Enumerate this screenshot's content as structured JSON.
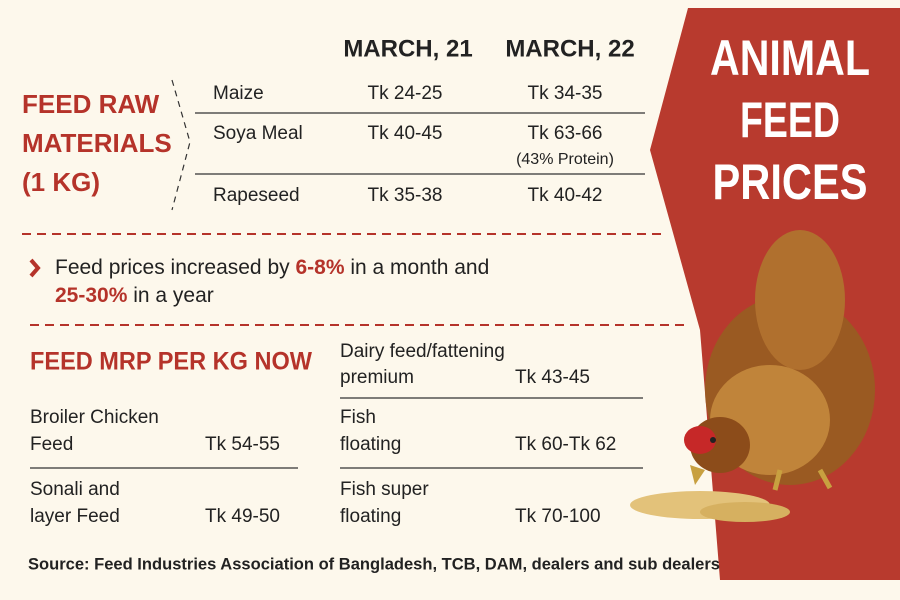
{
  "title": [
    "ANIMAL",
    "FEED",
    "PRICES"
  ],
  "raw_materials": {
    "heading": [
      "FEED RAW",
      "MATERIALS",
      "(1 KG)"
    ],
    "columns": [
      "MARCH, 21",
      "MARCH, 22"
    ],
    "rows": [
      [
        "Maize",
        "Tk 24-25",
        "Tk 34-35"
      ],
      [
        "Soya Meal",
        "Tk 40-45",
        "Tk 63-66"
      ],
      [
        "Rapeseed",
        "Tk 35-38",
        "Tk 40-42"
      ]
    ],
    "note": "(43% Protein)"
  },
  "highlight": {
    "lines": [
      [
        "Feed prices increased by ",
        "6-8%",
        " in a month and"
      ],
      [
        "25-30%",
        " in a year"
      ]
    ]
  },
  "mrp": {
    "heading": "FEED MRP PER KG NOW",
    "items": [
      {
        "name": [
          "Broiler Chicken",
          "Feed"
        ],
        "price": "Tk 54-55"
      },
      {
        "name": [
          "Sonali and",
          "layer Feed"
        ],
        "price": "Tk 49-50"
      },
      {
        "name": [
          "Dairy feed/fattening",
          "premium"
        ],
        "price": "Tk 43-45"
      },
      {
        "name": [
          "Fish",
          "floating"
        ],
        "price": "Tk 60-Tk 62"
      },
      {
        "name": [
          "Fish super",
          "floating"
        ],
        "price": "Tk 70-100"
      }
    ]
  },
  "source": "Source: Feed Industries Association of Bangladesh, TCB, DAM, dealers and sub dealers"
}
